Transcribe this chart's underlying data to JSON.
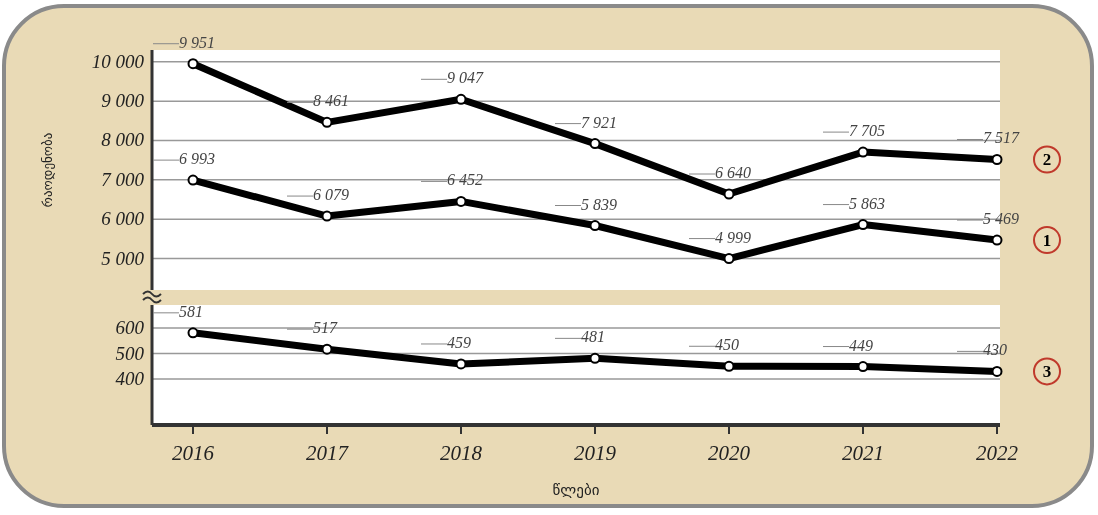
{
  "chart_data": [
    {
      "type": "line",
      "ylabel": "რაოდენობა",
      "categories": [
        "2016",
        "2017",
        "2018",
        "2019",
        "2020",
        "2021",
        "2022"
      ],
      "ylim": [
        4200,
        10300
      ],
      "yticks": [
        {
          "value": 5000,
          "label": "5 000"
        },
        {
          "value": 6000,
          "label": "6 000"
        },
        {
          "value": 7000,
          "label": "7 000"
        },
        {
          "value": 8000,
          "label": "8 000"
        },
        {
          "value": 9000,
          "label": "9 000"
        },
        {
          "value": 10000,
          "label": "10 000"
        }
      ],
      "grid": "y",
      "marker": "circle",
      "tick_labels": "y",
      "series": [
        {
          "name": "1",
          "color": "#000000",
          "values": [
            6993,
            6079,
            6452,
            5839,
            4999,
            5863,
            5469
          ],
          "value_labels": [
            "6 993",
            "6 079",
            "6 452",
            "5 839",
            "4 999",
            "5 863",
            "5 469"
          ]
        },
        {
          "name": "2",
          "color": "#000000",
          "values": [
            9951,
            8461,
            9047,
            7921,
            6640,
            7705,
            7517
          ],
          "value_labels": [
            "9 951",
            "8 461",
            "9 047",
            "7 921",
            "6 640",
            "7 705",
            "7 517"
          ]
        }
      ]
    },
    {
      "type": "line",
      "xlabel": "წლები",
      "categories": [
        "2016",
        "2017",
        "2018",
        "2019",
        "2020",
        "2021",
        "2022"
      ],
      "ylim": [
        220,
        690
      ],
      "yticks": [
        400,
        500,
        600
      ],
      "grid": "y",
      "marker": "circle",
      "series": [
        {
          "name": "3",
          "color": "#000000",
          "values": [
            581,
            517,
            459,
            481,
            450,
            449,
            430
          ],
          "value_labels": [
            "581",
            "517",
            "459",
            "481",
            "450",
            "449",
            "430"
          ]
        }
      ]
    }
  ]
}
